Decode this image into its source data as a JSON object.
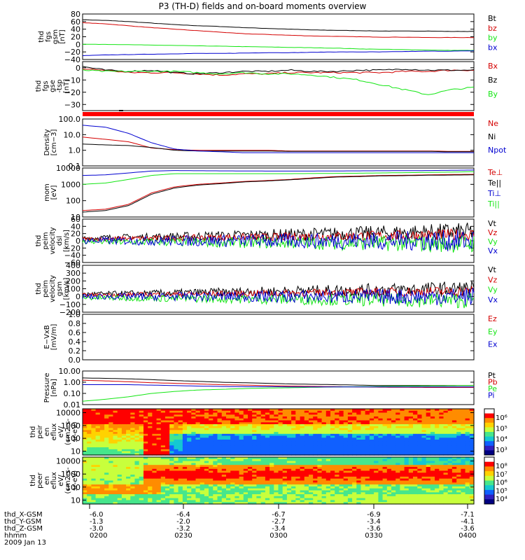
{
  "title": "P3 (TH-D) fields and on-board moments overview",
  "colors": {
    "black": "#000000",
    "red": "#d40000",
    "green": "#14e614",
    "blue": "#0000d0",
    "orange": "#ff8c00"
  },
  "chart_data": [
    {
      "type": "line",
      "ylabel": [
        "thd",
        "fgs",
        "gsm",
        "[nT]"
      ],
      "ylim": [
        -40,
        80
      ],
      "yticks": [
        "80",
        "60",
        "40",
        "20",
        "0",
        "−20",
        "−40"
      ],
      "series": [
        {
          "name": "Bt",
          "color": "black",
          "values": [
            65,
            63,
            60,
            56,
            52,
            49,
            47,
            44,
            42,
            40,
            38,
            37,
            36,
            35,
            35,
            35,
            34,
            34
          ]
        },
        {
          "name": "bz",
          "color": "red",
          "values": [
            57,
            54,
            49,
            44,
            40,
            36,
            32,
            28,
            26,
            24,
            22,
            21,
            20,
            19,
            19,
            18,
            18,
            18
          ]
        },
        {
          "name": "by",
          "color": "green",
          "values": [
            0,
            0,
            -1,
            -2,
            -3,
            -4,
            -5,
            -6,
            -7,
            -8,
            -9,
            -10,
            -12,
            -13,
            -14,
            -15,
            -16,
            -16
          ]
        },
        {
          "name": "bx",
          "color": "blue",
          "values": [
            -30,
            -28,
            -27,
            -26,
            -25,
            -24,
            -24,
            -23,
            -22,
            -22,
            -21,
            -20,
            -20,
            -20,
            -19,
            -18,
            -18,
            -17
          ]
        }
      ]
    },
    {
      "type": "line",
      "ylabel": [
        "thd",
        "fgs",
        "gse",
        "-tsp",
        "[nT]"
      ],
      "ylim": [
        -35,
        5
      ],
      "yticks": [
        "0",
        "−10",
        "−20",
        "−30"
      ],
      "series": [
        {
          "name": "Bx",
          "color": "red",
          "values": [
            -1,
            -2,
            -4,
            -4,
            -4,
            -5,
            -6,
            -5,
            -5,
            -4,
            -4,
            -4,
            -4,
            -4,
            -3,
            -3,
            -2,
            -2
          ]
        },
        {
          "name": "Bz",
          "color": "black",
          "values": [
            1,
            -2,
            -3,
            -2,
            -4,
            -5,
            -4,
            -3,
            -3,
            -2,
            -3,
            -3,
            -2,
            -2,
            -1,
            -2,
            -2,
            -2
          ]
        },
        {
          "name": "By",
          "color": "green",
          "values": [
            -2,
            -3,
            -3,
            -3,
            -3,
            -4,
            -5,
            -4,
            -5,
            -5,
            -6,
            -8,
            -10,
            -14,
            -18,
            -22,
            -18,
            -16
          ]
        }
      ]
    },
    {
      "type": "line",
      "ylabel": [
        "Density",
        "[cm−3]"
      ],
      "log": true,
      "ylim": [
        0.1,
        100
      ],
      "yticks": [
        "100.0",
        "10.0",
        "1.0",
        "0.1"
      ],
      "series": [
        {
          "name": "Ne",
          "color": "red",
          "values": [
            7,
            5,
            3.5,
            1.4,
            1.1,
            1.0,
            1.0,
            1.0,
            1.0,
            0.9,
            0.9,
            0.9,
            0.9,
            0.9,
            0.9,
            0.9,
            0.85,
            0.85
          ]
        },
        {
          "name": "Ni",
          "color": "black",
          "values": [
            2.5,
            2.2,
            2.0,
            1.5,
            1.0,
            0.9,
            0.9,
            0.9,
            0.9,
            0.85,
            0.85,
            0.85,
            0.85,
            0.85,
            0.85,
            0.85,
            0.8,
            0.8
          ]
        },
        {
          "name": "Npot",
          "color": "blue",
          "values": [
            40,
            30,
            12,
            3,
            1.2,
            0.9,
            0.8,
            0.7,
            0.7,
            0.7,
            0.7,
            0.7,
            0.7,
            0.7,
            0.7,
            0.7,
            0.7,
            0.7
          ]
        }
      ]
    },
    {
      "type": "line",
      "ylabel": [
        "mom",
        "[eV]"
      ],
      "log": true,
      "ylim": [
        10,
        10000
      ],
      "yticks": [
        "10000",
        "1000",
        "100",
        "10"
      ],
      "series": [
        {
          "name": "Te⊥",
          "color": "red",
          "values": [
            25,
            30,
            60,
            300,
            700,
            1000,
            1200,
            1500,
            1700,
            2000,
            2500,
            3000,
            3200,
            3500,
            3600,
            3800,
            4000,
            4100
          ]
        },
        {
          "name": "Te||",
          "color": "black",
          "values": [
            20,
            25,
            50,
            250,
            600,
            900,
            1100,
            1400,
            1600,
            1900,
            2300,
            2800,
            3000,
            3300,
            3400,
            3600,
            3700,
            3800
          ]
        },
        {
          "name": "Ti⊥",
          "color": "blue",
          "values": [
            3500,
            3800,
            5000,
            6500,
            7000,
            6800,
            6700,
            6600,
            6500,
            6500,
            6500,
            6600,
            6700,
            6800,
            6900,
            7000,
            7200,
            7500
          ]
        },
        {
          "name": "Ti||",
          "color": "green",
          "values": [
            1000,
            1200,
            2000,
            3500,
            4500,
            4500,
            4500,
            4500,
            4500,
            4500,
            4600,
            4700,
            4800,
            5000,
            5200,
            5400,
            5600,
            6000
          ]
        }
      ]
    },
    {
      "type": "line",
      "ylabel": [
        "thd",
        "peim",
        "velocity",
        "dsl",
        "[km/s]"
      ],
      "ylim": [
        -60,
        60
      ],
      "yticks": [
        "60",
        "40",
        "20",
        "0",
        "−20",
        "−40",
        "−60"
      ],
      "series": [
        {
          "name": "Vt",
          "color": "black",
          "center": 15,
          "amp": 15
        },
        {
          "name": "Vz",
          "color": "red",
          "center": 10,
          "amp": 10
        },
        {
          "name": "Vy",
          "color": "green",
          "center": -5,
          "amp": 15
        },
        {
          "name": "Vx",
          "color": "blue",
          "center": 0,
          "amp": 18
        }
      ]
    },
    {
      "type": "line",
      "ylabel": [
        "thd",
        "peim",
        "velocity",
        "gsm",
        "[km/s]"
      ],
      "ylim": [
        -200,
        400
      ],
      "yticks": [
        "400",
        "300",
        "200",
        "100",
        "0",
        "−100",
        "−200"
      ],
      "series": [
        {
          "name": "Vt",
          "color": "black",
          "center": 60,
          "amp": 60
        },
        {
          "name": "Vz",
          "color": "red",
          "center": 40,
          "amp": 40
        },
        {
          "name": "Vy",
          "color": "green",
          "center": -30,
          "amp": 60
        },
        {
          "name": "Vx",
          "color": "blue",
          "center": 0,
          "amp": 70
        }
      ]
    },
    {
      "type": "line",
      "ylabel": [
        "E−VxB",
        "[mV/m]"
      ],
      "ylim": [
        0,
        1
      ],
      "yticks": [
        "1.0",
        "0.8",
        "0.6",
        "0.4",
        "0.2",
        "0.0"
      ],
      "series": [
        {
          "name": "Ez",
          "color": "red"
        },
        {
          "name": "Ey",
          "color": "green"
        },
        {
          "name": "Ex",
          "color": "blue"
        }
      ]
    },
    {
      "type": "line",
      "ylabel": [
        "Pressure",
        "[nPa]"
      ],
      "log": true,
      "ylim": [
        0.01,
        10
      ],
      "yticks": [
        "10.00",
        "1.00",
        "0.10",
        "0.01"
      ],
      "series": [
        {
          "name": "Pt",
          "color": "black",
          "values": [
            2.4,
            2.2,
            2.0,
            1.7,
            1.4,
            1.2,
            1.0,
            0.9,
            0.8,
            0.7,
            0.65,
            0.6,
            0.55,
            0.5,
            0.5,
            0.5,
            0.5,
            0.5
          ]
        },
        {
          "name": "Pb",
          "color": "red",
          "values": [
            1.5,
            1.3,
            1.1,
            0.9,
            0.8,
            0.7,
            0.6,
            0.55,
            0.5,
            0.45,
            0.42,
            0.4,
            0.38,
            0.36,
            0.35,
            0.34,
            0.34,
            0.34
          ]
        },
        {
          "name": "Pe",
          "color": "green",
          "values": [
            0.02,
            0.03,
            0.05,
            0.1,
            0.15,
            0.2,
            0.23,
            0.27,
            0.3,
            0.32,
            0.35,
            0.38,
            0.4,
            0.42,
            0.45,
            0.46,
            0.48,
            0.5
          ]
        },
        {
          "name": "Pi",
          "color": "blue",
          "values": [
            0.6,
            0.6,
            0.6,
            0.55,
            0.5,
            0.45,
            0.42,
            0.4,
            0.4,
            0.38,
            0.38,
            0.38,
            0.38,
            0.38,
            0.38,
            0.38,
            0.38,
            0.38
          ]
        }
      ]
    },
    {
      "type": "heatmap",
      "ylabel": [
        "thd",
        "peir",
        "en",
        "eflux",
        "eV/",
        "(cm2-s-",
        "sr-eV)"
      ],
      "log": true,
      "ylim": [
        5,
        20000
      ],
      "yticks": [
        "10000",
        "1000",
        "100",
        "10"
      ],
      "colorbar": {
        "ticks": [
          "10⁶",
          "10⁵",
          "10⁴",
          "10³"
        ]
      }
    },
    {
      "type": "heatmap",
      "ylabel": [
        "thd",
        "peer",
        "en",
        "eflux",
        "eV/",
        "(cm2-s-",
        "sr-eV)"
      ],
      "log": true,
      "ylim": [
        5,
        20000
      ],
      "yticks": [
        "10000",
        "1000",
        "100",
        "10"
      ],
      "colorbar": {
        "ticks": [
          "10⁸",
          "10⁷",
          "10⁶",
          "10⁵",
          "10⁴"
        ]
      }
    }
  ],
  "xaxis": {
    "labels": [
      "thd_X-GSM",
      "thd_Y-GSM",
      "thd_Z-GSM",
      "hhmm",
      "2009 Jan 13"
    ],
    "columns": [
      {
        "x": "-6.0",
        "y": "-1.3",
        "z": "-3.0",
        "t": "0200"
      },
      {
        "x": "-6.4",
        "y": "-2.0",
        "z": "-3.2",
        "t": "0230"
      },
      {
        "x": "-6.7",
        "y": "-2.7",
        "z": "-3.4",
        "t": "0300"
      },
      {
        "x": "-6.9",
        "y": "-3.4",
        "z": "-3.6",
        "t": "0330"
      },
      {
        "x": "-7.1",
        "y": "-4.1",
        "z": "-3.6",
        "t": "0400"
      }
    ]
  }
}
